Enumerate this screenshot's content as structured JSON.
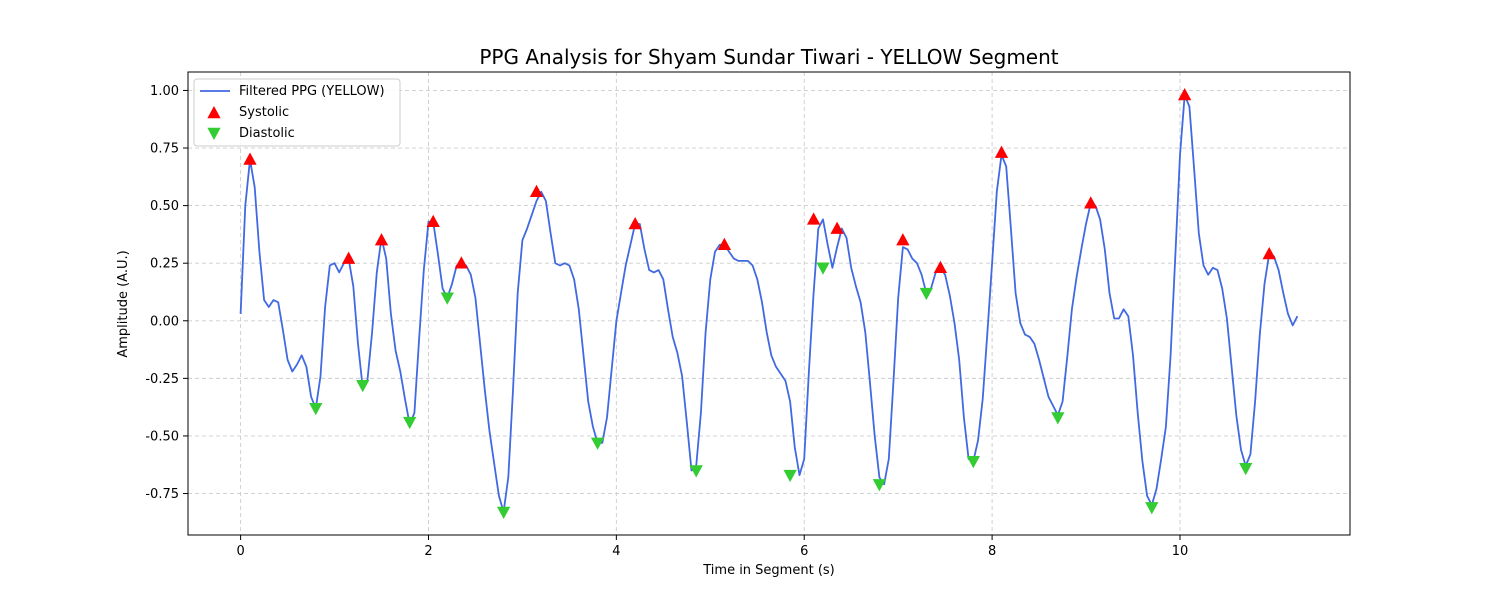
{
  "chart_data": {
    "type": "line",
    "title": "PPG Analysis for Shyam Sundar Tiwari - YELLOW Segment",
    "xlabel": "Time in Segment (s)",
    "ylabel": "Amplitude (A.U.)",
    "xlim": [
      -0.56,
      11.81
    ],
    "ylim": [
      -0.93,
      1.08
    ],
    "xticks": [
      0,
      2,
      4,
      6,
      8,
      10
    ],
    "yticks": [
      -0.75,
      -0.5,
      -0.25,
      0.0,
      0.25,
      0.5,
      0.75,
      1.0
    ],
    "grid": true,
    "legend_position": "top-left",
    "series": [
      {
        "name": "Filtered PPG (YELLOW)",
        "kind": "line",
        "color": "#4169e1",
        "x": [
          0.0,
          0.05,
          0.1,
          0.15,
          0.2,
          0.25,
          0.3,
          0.35,
          0.4,
          0.45,
          0.5,
          0.55,
          0.6,
          0.65,
          0.7,
          0.75,
          0.8,
          0.85,
          0.9,
          0.95,
          1.0,
          1.05,
          1.1,
          1.15,
          1.2,
          1.25,
          1.3,
          1.35,
          1.4,
          1.45,
          1.5,
          1.55,
          1.6,
          1.65,
          1.7,
          1.75,
          1.8,
          1.85,
          1.9,
          1.95,
          2.0,
          2.05,
          2.1,
          2.15,
          2.2,
          2.25,
          2.3,
          2.35,
          2.4,
          2.45,
          2.5,
          2.55,
          2.6,
          2.65,
          2.7,
          2.75,
          2.8,
          2.85,
          2.9,
          2.95,
          3.0,
          3.05,
          3.1,
          3.15,
          3.2,
          3.25,
          3.3,
          3.35,
          3.4,
          3.45,
          3.5,
          3.55,
          3.6,
          3.65,
          3.7,
          3.75,
          3.8,
          3.85,
          3.9,
          3.95,
          4.0,
          4.05,
          4.1,
          4.15,
          4.2,
          4.25,
          4.3,
          4.35,
          4.4,
          4.45,
          4.5,
          4.55,
          4.6,
          4.65,
          4.7,
          4.75,
          4.8,
          4.85,
          4.9,
          4.95,
          5.0,
          5.05,
          5.1,
          5.15,
          5.2,
          5.25,
          5.3,
          5.35,
          5.4,
          5.45,
          5.5,
          5.55,
          5.6,
          5.65,
          5.7,
          5.75,
          5.8,
          5.85,
          5.9,
          5.95,
          6.0,
          6.05,
          6.1,
          6.15,
          6.2,
          6.25,
          6.3,
          6.35,
          6.4,
          6.45,
          6.5,
          6.55,
          6.6,
          6.65,
          6.7,
          6.75,
          6.8,
          6.85,
          6.9,
          6.95,
          7.0,
          7.05,
          7.1,
          7.15,
          7.2,
          7.25,
          7.3,
          7.35,
          7.4,
          7.45,
          7.5,
          7.55,
          7.6,
          7.65,
          7.7,
          7.75,
          7.8,
          7.85,
          7.9,
          7.95,
          8.0,
          8.05,
          8.1,
          8.15,
          8.2,
          8.25,
          8.3,
          8.35,
          8.4,
          8.45,
          8.5,
          8.55,
          8.6,
          8.65,
          8.7,
          8.75,
          8.8,
          8.85,
          8.9,
          8.95,
          9.0,
          9.05,
          9.1,
          9.15,
          9.2,
          9.25,
          9.3,
          9.35,
          9.4,
          9.45,
          9.5,
          9.55,
          9.6,
          9.65,
          9.7,
          9.75,
          9.8,
          9.85,
          9.9,
          9.95,
          10.0,
          10.05,
          10.1,
          10.15,
          10.2,
          10.25,
          10.3,
          10.35,
          10.4,
          10.45,
          10.5,
          10.55,
          10.6,
          10.65,
          10.7,
          10.75,
          10.8,
          10.85,
          10.9,
          10.95,
          11.0,
          11.05,
          11.1,
          11.15,
          11.2,
          11.25
        ],
        "y": [
          0.03,
          0.5,
          0.7,
          0.58,
          0.3,
          0.09,
          0.06,
          0.09,
          0.08,
          -0.04,
          -0.17,
          -0.22,
          -0.19,
          -0.15,
          -0.2,
          -0.33,
          -0.38,
          -0.24,
          0.06,
          0.24,
          0.25,
          0.21,
          0.25,
          0.27,
          0.15,
          -0.1,
          -0.29,
          -0.26,
          -0.05,
          0.21,
          0.36,
          0.27,
          0.03,
          -0.13,
          -0.22,
          -0.34,
          -0.45,
          -0.4,
          -0.08,
          0.22,
          0.43,
          0.43,
          0.29,
          0.14,
          0.1,
          0.16,
          0.24,
          0.25,
          0.24,
          0.2,
          0.1,
          -0.1,
          -0.3,
          -0.48,
          -0.62,
          -0.76,
          -0.83,
          -0.68,
          -0.3,
          0.12,
          0.35,
          0.4,
          0.46,
          0.52,
          0.56,
          0.52,
          0.38,
          0.25,
          0.24,
          0.25,
          0.24,
          0.18,
          0.05,
          -0.15,
          -0.35,
          -0.46,
          -0.53,
          -0.53,
          -0.42,
          -0.21,
          0.0,
          0.12,
          0.24,
          0.33,
          0.42,
          0.42,
          0.31,
          0.22,
          0.21,
          0.22,
          0.18,
          0.05,
          -0.07,
          -0.14,
          -0.24,
          -0.44,
          -0.65,
          -0.63,
          -0.4,
          -0.05,
          0.18,
          0.3,
          0.33,
          0.33,
          0.3,
          0.27,
          0.26,
          0.26,
          0.26,
          0.24,
          0.18,
          0.08,
          -0.05,
          -0.15,
          -0.2,
          -0.23,
          -0.26,
          -0.35,
          -0.55,
          -0.67,
          -0.6,
          -0.22,
          0.12,
          0.4,
          0.44,
          0.33,
          0.23,
          0.32,
          0.4,
          0.36,
          0.23,
          0.15,
          0.08,
          -0.05,
          -0.27,
          -0.5,
          -0.68,
          -0.71,
          -0.6,
          -0.26,
          0.1,
          0.32,
          0.31,
          0.27,
          0.25,
          0.2,
          0.12,
          0.14,
          0.21,
          0.23,
          0.2,
          0.11,
          -0.01,
          -0.17,
          -0.42,
          -0.6,
          -0.61,
          -0.52,
          -0.34,
          -0.05,
          0.25,
          0.56,
          0.72,
          0.67,
          0.4,
          0.12,
          -0.01,
          -0.06,
          -0.07,
          -0.1,
          -0.17,
          -0.25,
          -0.33,
          -0.37,
          -0.41,
          -0.35,
          -0.16,
          0.05,
          0.19,
          0.31,
          0.42,
          0.51,
          0.5,
          0.44,
          0.31,
          0.12,
          0.01,
          0.01,
          0.05,
          0.02,
          -0.15,
          -0.4,
          -0.61,
          -0.76,
          -0.8,
          -0.73,
          -0.6,
          -0.46,
          -0.15,
          0.28,
          0.72,
          0.98,
          0.93,
          0.66,
          0.38,
          0.24,
          0.2,
          0.23,
          0.22,
          0.14,
          0.01,
          -0.2,
          -0.41,
          -0.56,
          -0.63,
          -0.58,
          -0.35,
          -0.06,
          0.16,
          0.29,
          0.28,
          0.22,
          0.12,
          0.03,
          -0.02,
          0.02
        ]
      },
      {
        "name": "Systolic",
        "kind": "markers",
        "marker": "triangle-up",
        "color": "#ff0000",
        "x": [
          0.1,
          1.15,
          1.5,
          2.05,
          2.35,
          3.15,
          4.2,
          5.15,
          6.1,
          6.35,
          7.05,
          7.45,
          8.1,
          9.05,
          10.05,
          10.95
        ],
        "y": [
          0.7,
          0.27,
          0.35,
          0.43,
          0.25,
          0.56,
          0.42,
          0.33,
          0.44,
          0.4,
          0.35,
          0.23,
          0.73,
          0.51,
          0.98,
          0.29
        ]
      },
      {
        "name": "Diastolic",
        "kind": "markers",
        "marker": "triangle-down",
        "color": "#33cc33",
        "x": [
          0.8,
          1.3,
          1.8,
          2.2,
          2.8,
          3.8,
          4.85,
          5.85,
          6.2,
          6.8,
          7.3,
          7.8,
          8.7,
          9.7,
          10.7
        ],
        "y": [
          -0.38,
          -0.28,
          -0.44,
          0.1,
          -0.83,
          -0.53,
          -0.65,
          -0.67,
          0.23,
          -0.71,
          0.12,
          -0.61,
          -0.42,
          -0.81,
          -0.64
        ]
      }
    ]
  }
}
